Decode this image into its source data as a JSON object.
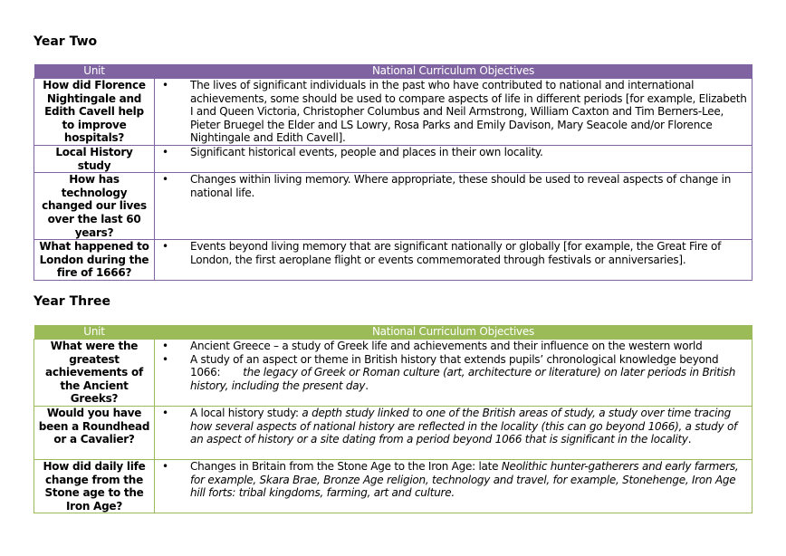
{
  "colors": {
    "year_two": "#8064a2",
    "year_three": "#9bbb59"
  },
  "year_two": {
    "heading": "Year Two",
    "headers": [
      "Unit",
      "National Curriculum Objectives"
    ],
    "rows": [
      {
        "unit": "How did Florence Nightingale and Edith Cavell help to improve hospitals?",
        "objectives": [
          "The lives of significant individuals in the past who have contributed to national and international achievements, some should be used to compare aspects of life in different periods [for example, Elizabeth I and Queen Victoria, Christopher Columbus and Neil Armstrong, William Caxton and Tim Berners-Lee, Pieter Bruegel the Elder and LS Lowry, Rosa Parks and Emily Davison, Mary Seacole and/or Florence Nightingale and Edith Cavell]."
        ]
      },
      {
        "unit": "Local History study",
        "objectives": [
          "Significant historical events, people and places in their own locality."
        ]
      },
      {
        "unit": "How has technology changed our lives over the last 60 years?",
        "objectives": [
          "Changes within living memory. Where appropriate, these should be used to reveal aspects of change in national life."
        ]
      },
      {
        "unit": "What happened to London during the fire of 1666?",
        "objectives": [
          "Events beyond living memory that are significant nationally or globally [for example, the Great Fire of London, the first aeroplane flight or events commemorated through festivals or anniversaries]."
        ]
      }
    ]
  },
  "year_three": {
    "heading": "Year Three",
    "headers": [
      "Unit",
      "National Curriculum Objectives"
    ],
    "rows": [
      {
        "unit": "What were the greatest achievements of the Ancient Greeks?",
        "objectives": [
          {
            "plain": "Ancient Greece – a study of Greek life and achievements and their influence on the western world"
          },
          {
            "plain": "A study of an aspect or theme in British history that extends pupils’ chronological knowledge beyond 1066:",
            "italic": "the legacy of Greek or Roman culture (art, architecture or literature) on later periods in British history, including the present day",
            "tail": "."
          }
        ]
      },
      {
        "unit": "Would you have been a Roundhead or a Cavalier?",
        "objectives": [
          {
            "plain": "A local history study:",
            "italic": "a depth study linked to one of the British areas of study, a study over time tracing how several aspects of national history are reflected in the locality (this can go beyond 1066), a study of an aspect of history or a site dating from a period beyond 1066 that is significant in the locality",
            "tail": "."
          }
        ]
      },
      {
        "unit": "How did daily life change from the Stone age to the Iron Age?",
        "objectives": [
          {
            "plain": "Changes in Britain from the Stone Age to the Iron Age: late",
            "italic": "Neolithic hunter-gatherers and early farmers, for example, Skara Brae, Bronze Age religion, technology and travel, for example, Stonehenge, Iron Age hill forts: tribal kingdoms, farming, art and culture.",
            "tail": ""
          }
        ]
      }
    ]
  }
}
